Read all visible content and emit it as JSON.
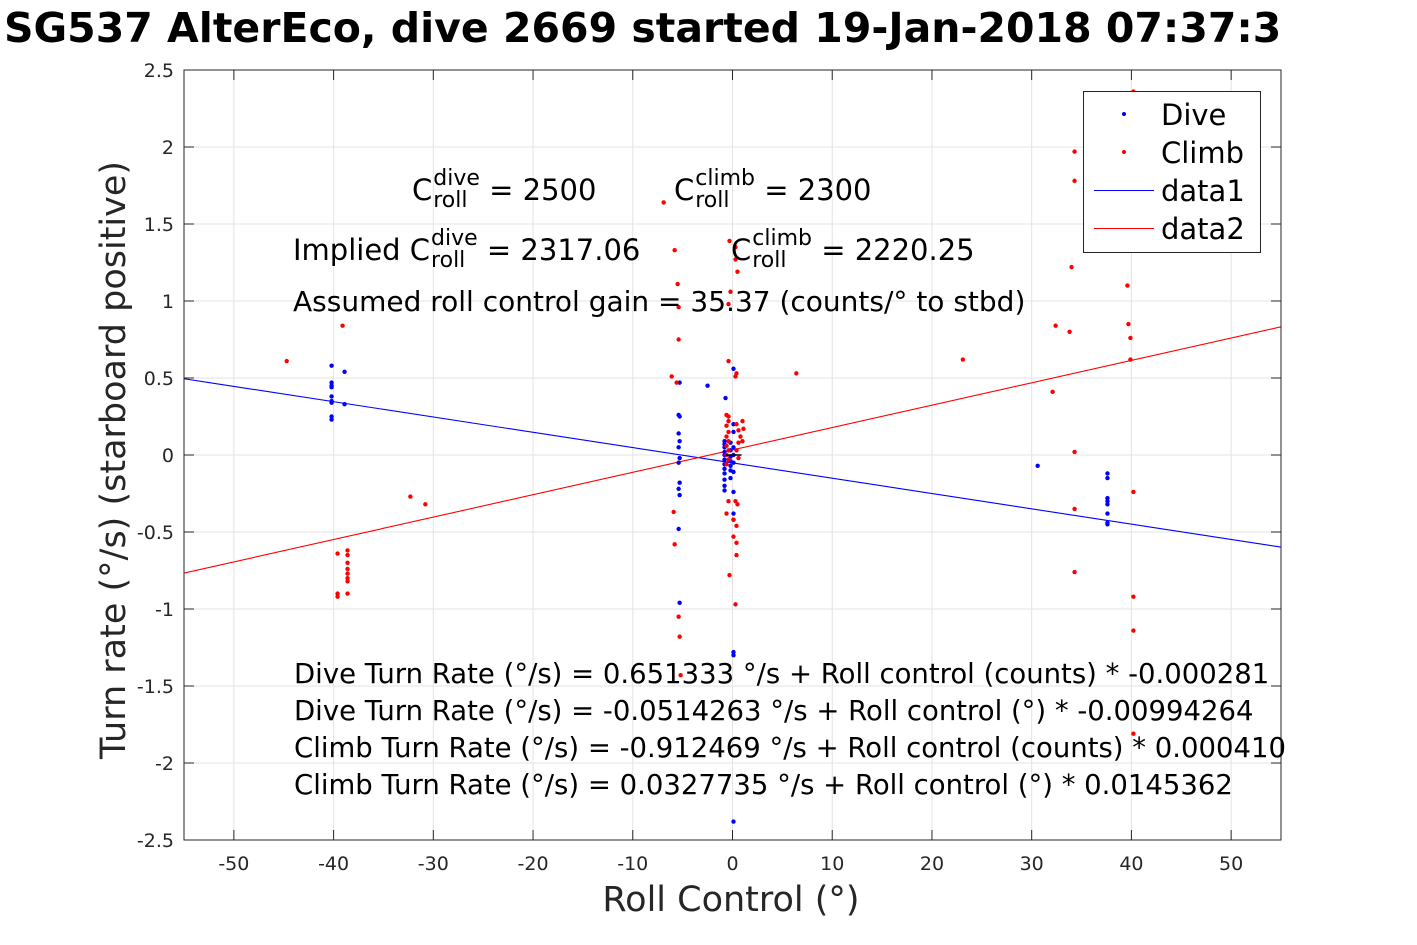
{
  "chart_data": {
    "type": "scatter",
    "title": "SG537 AlterEco, dive 2669 started 19-Jan-2018 07:37:3",
    "xlabel": "Roll Control (°)",
    "ylabel": "Turn rate (°/s) (starboard positive)",
    "xlim": [
      -55,
      55
    ],
    "ylim": [
      -2.5,
      2.5
    ],
    "xticks": [
      -50,
      -40,
      -30,
      -20,
      -10,
      0,
      10,
      20,
      30,
      40,
      50
    ],
    "yticks": [
      -2.5,
      -2,
      -1.5,
      -1,
      -0.5,
      0,
      0.5,
      1,
      1.5,
      2,
      2.5
    ],
    "xtick_labels": [
      "-50",
      "-40",
      "-30",
      "-20",
      "-10",
      "0",
      "10",
      "20",
      "30",
      "40",
      "50"
    ],
    "ytick_labels": [
      "-2.5",
      "-2",
      "-1.5",
      "-1",
      "-0.5",
      "0",
      "0.5",
      "1",
      "1.5",
      "2",
      "2.5"
    ],
    "grid": true,
    "legend_position": "top-right",
    "series": [
      {
        "name": "Dive",
        "kind": "points",
        "color": "#0000ff",
        "points": [
          [
            -40.2,
            0.58
          ],
          [
            -40.2,
            0.47
          ],
          [
            -40.2,
            0.45
          ],
          [
            -40.2,
            0.44
          ],
          [
            -40.2,
            0.38
          ],
          [
            -40.2,
            0.35
          ],
          [
            -40.2,
            0.34
          ],
          [
            -40.2,
            0.25
          ],
          [
            -40.2,
            0.23
          ],
          [
            -38.9,
            0.54
          ],
          [
            -38.9,
            0.33
          ],
          [
            -5.3,
            0.47
          ],
          [
            -5.4,
            0.26
          ],
          [
            -5.3,
            0.25
          ],
          [
            -5.4,
            0.14
          ],
          [
            -5.3,
            0.09
          ],
          [
            -5.4,
            0.05
          ],
          [
            -5.3,
            -0.02
          ],
          [
            -5.4,
            -0.05
          ],
          [
            -5.3,
            -0.18
          ],
          [
            -5.4,
            -0.22
          ],
          [
            -5.3,
            -0.26
          ],
          [
            -5.4,
            -0.48
          ],
          [
            -5.3,
            -0.96
          ],
          [
            -2.5,
            0.45
          ],
          [
            -0.7,
            0.37
          ],
          [
            -0.8,
            0.09
          ],
          [
            -0.8,
            0.07
          ],
          [
            -0.8,
            0.05
          ],
          [
            -0.8,
            0.02
          ],
          [
            -0.8,
            0.0
          ],
          [
            -0.8,
            -0.03
          ],
          [
            -0.8,
            -0.06
          ],
          [
            -0.8,
            -0.09
          ],
          [
            -0.8,
            -0.12
          ],
          [
            -0.8,
            -0.16
          ],
          [
            -0.8,
            -0.2
          ],
          [
            -0.8,
            -0.23
          ],
          [
            -0.2,
            0.08
          ],
          [
            -0.2,
            0.03
          ],
          [
            -0.2,
            -0.01
          ],
          [
            -0.2,
            -0.04
          ],
          [
            -0.2,
            -0.07
          ],
          [
            -0.2,
            -0.1
          ],
          [
            -0.2,
            -0.15
          ],
          [
            0.1,
            0.56
          ],
          [
            0.1,
            0.2
          ],
          [
            0.1,
            0.15
          ],
          [
            0.1,
            0.05
          ],
          [
            0.1,
            0.0
          ],
          [
            0.1,
            -0.05
          ],
          [
            0.1,
            -0.11
          ],
          [
            0.1,
            -0.24
          ],
          [
            0.1,
            -0.38
          ],
          [
            0.1,
            -0.42
          ],
          [
            0.1,
            -1.28
          ],
          [
            0.1,
            -1.3
          ],
          [
            0.1,
            -2.38
          ],
          [
            30.6,
            -0.07
          ],
          [
            37.6,
            -0.12
          ],
          [
            37.6,
            -0.15
          ],
          [
            37.6,
            -0.28
          ],
          [
            37.6,
            -0.3
          ],
          [
            37.6,
            -0.32
          ],
          [
            37.6,
            -0.38
          ],
          [
            37.6,
            -0.44
          ],
          [
            37.6,
            -0.45
          ]
        ]
      },
      {
        "name": "Climb",
        "kind": "points",
        "color": "#ff0000",
        "points": [
          [
            -44.7,
            0.61
          ],
          [
            -39.1,
            0.84
          ],
          [
            -39.6,
            -0.64
          ],
          [
            -39.6,
            -0.9
          ],
          [
            -39.6,
            -0.92
          ],
          [
            -38.6,
            -0.62
          ],
          [
            -38.6,
            -0.65
          ],
          [
            -38.6,
            -0.7
          ],
          [
            -38.6,
            -0.74
          ],
          [
            -38.6,
            -0.77
          ],
          [
            -38.6,
            -0.8
          ],
          [
            -38.6,
            -0.82
          ],
          [
            -38.6,
            -0.9
          ],
          [
            -32.3,
            -0.27
          ],
          [
            -30.8,
            -0.32
          ],
          [
            -6.9,
            1.64
          ],
          [
            -5.8,
            1.33
          ],
          [
            -5.5,
            1.11
          ],
          [
            -5.4,
            0.96
          ],
          [
            -5.4,
            0.75
          ],
          [
            -6.1,
            0.51
          ],
          [
            -5.6,
            0.47
          ],
          [
            -5.9,
            -0.37
          ],
          [
            -5.8,
            -0.58
          ],
          [
            -5.4,
            -1.05
          ],
          [
            -5.3,
            -1.18
          ],
          [
            -5.2,
            -1.43
          ],
          [
            -0.3,
            1.39
          ],
          [
            0.3,
            1.35
          ],
          [
            0.3,
            1.27
          ],
          [
            0.5,
            1.19
          ],
          [
            -0.2,
            1.06
          ],
          [
            -0.4,
            0.98
          ],
          [
            -0.4,
            0.61
          ],
          [
            0.4,
            0.53
          ],
          [
            0.3,
            0.51
          ],
          [
            -0.6,
            0.26
          ],
          [
            -0.4,
            0.25
          ],
          [
            -0.4,
            0.22
          ],
          [
            -0.6,
            0.19
          ],
          [
            -0.4,
            0.15
          ],
          [
            -0.6,
            0.12
          ],
          [
            -0.4,
            0.09
          ],
          [
            -0.6,
            0.06
          ],
          [
            -0.4,
            0.03
          ],
          [
            -0.6,
            0.0
          ],
          [
            -0.4,
            -0.03
          ],
          [
            -0.6,
            -0.06
          ],
          [
            0.4,
            0.2
          ],
          [
            0.6,
            0.16
          ],
          [
            0.8,
            0.12
          ],
          [
            0.6,
            0.08
          ],
          [
            0.4,
            0.03
          ],
          [
            0.6,
            -0.02
          ],
          [
            1.0,
            0.22
          ],
          [
            1.1,
            0.17
          ],
          [
            1.0,
            0.09
          ],
          [
            -0.4,
            -0.3
          ],
          [
            0.3,
            -0.3
          ],
          [
            0.5,
            -0.32
          ],
          [
            -0.6,
            -0.38
          ],
          [
            0.1,
            -0.42
          ],
          [
            0.4,
            -0.46
          ],
          [
            0.1,
            -0.53
          ],
          [
            0.4,
            -0.57
          ],
          [
            0.4,
            -0.65
          ],
          [
            -0.3,
            -0.78
          ],
          [
            0.3,
            -0.97
          ],
          [
            6.4,
            0.53
          ],
          [
            23.1,
            0.62
          ],
          [
            32.1,
            0.41
          ],
          [
            32.4,
            0.84
          ],
          [
            33.8,
            0.8
          ],
          [
            34.0,
            1.22
          ],
          [
            34.3,
            1.78
          ],
          [
            34.3,
            1.97
          ],
          [
            34.3,
            0.02
          ],
          [
            34.3,
            -0.35
          ],
          [
            34.3,
            -0.76
          ],
          [
            39.6,
            1.1
          ],
          [
            39.7,
            0.85
          ],
          [
            39.9,
            0.62
          ],
          [
            39.9,
            0.76
          ],
          [
            40.2,
            -0.24
          ],
          [
            40.2,
            -0.92
          ],
          [
            40.2,
            -1.14
          ],
          [
            40.2,
            -1.81
          ],
          [
            40.2,
            2.36
          ]
        ]
      },
      {
        "name": "data1",
        "kind": "line",
        "color": "#0000ff",
        "x": [
          -55,
          55
        ],
        "y": [
          0.4952,
          -0.5981
        ]
      },
      {
        "name": "data2",
        "kind": "line",
        "color": "#ff0000",
        "x": [
          -55,
          55
        ],
        "y": [
          -0.7667,
          0.8322
        ]
      }
    ],
    "annotations": {
      "c_roll_dive": {
        "prefix": "C",
        "sup": "dive",
        "sub": "roll",
        "value": "= 2500"
      },
      "c_roll_climb": {
        "prefix": "C",
        "sup": "climb",
        "sub": "roll",
        "value": "= 2300"
      },
      "implied_dive": {
        "prefix": "Implied C",
        "sup": "dive",
        "sub": "roll",
        "value": "= 2317.06"
      },
      "implied_climb": {
        "prefix": "C",
        "sup": "climb",
        "sub": "roll",
        "value": "= 2220.25"
      },
      "gain": "Assumed roll control gain = 35.37 (counts/° to stbd)",
      "equations": [
        "Dive Turn Rate (°/s) = 0.651333 °/s + Roll control (counts) * -0.000281",
        "Dive Turn Rate (°/s) = -0.0514263 °/s + Roll control (°) * -0.00994264",
        "Climb Turn Rate (°/s) = -0.912469 °/s + Roll control (counts) * 0.000410",
        "Climb Turn Rate (°/s) = 0.0327735 °/s + Roll control (°) * 0.0145362"
      ]
    }
  }
}
